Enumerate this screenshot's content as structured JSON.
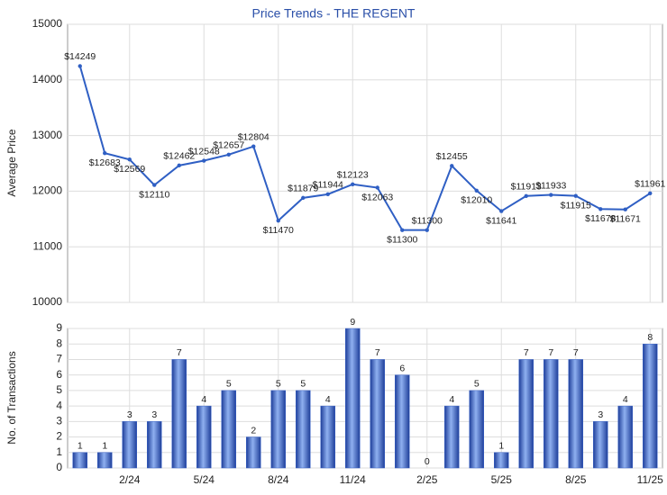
{
  "chart_data": [
    {
      "type": "line",
      "title": "Price Trends - THE REGENT",
      "ylabel": "Average Price",
      "color": "#2f5fc4",
      "values": [
        14249,
        12683,
        12569,
        12110,
        12462,
        12548,
        12657,
        12804,
        11470,
        11879,
        11944,
        12123,
        12063,
        11300,
        11300,
        12455,
        12010,
        11641,
        11913,
        11933,
        11915,
        11678,
        11671,
        11961
      ],
      "value_labels": [
        "$14249",
        "$12683",
        "$12569",
        "$12110",
        "$12462",
        "$12548",
        "$12657",
        "$12804",
        "$11470",
        "$11879",
        "$11944",
        "$12123",
        "$12063",
        "$11300",
        "$11300",
        "$12455",
        "$12010",
        "$11641",
        "$11913",
        "$11933",
        "$11915",
        "$11678",
        "$11671",
        "$11961"
      ],
      "ylim": [
        10000,
        15000
      ],
      "yticks": [
        10000,
        11000,
        12000,
        13000,
        14000,
        15000
      ],
      "grid": true
    },
    {
      "type": "bar",
      "ylabel": "No. of Transactions",
      "color": "#3a63c8",
      "categories": [
        null,
        null,
        "2/24",
        null,
        null,
        "5/24",
        null,
        null,
        "8/24",
        null,
        null,
        "11/24",
        null,
        null,
        "2/25",
        null,
        null,
        "5/25",
        null,
        null,
        "8/25",
        null,
        null,
        "11/25"
      ],
      "values": [
        1,
        1,
        3,
        3,
        7,
        4,
        5,
        2,
        5,
        5,
        4,
        9,
        7,
        6,
        0,
        4,
        5,
        1,
        7,
        7,
        7,
        3,
        4,
        8
      ],
      "ylim": [
        0,
        9
      ],
      "yticks": [
        0,
        1,
        2,
        3,
        4,
        5,
        6,
        7,
        8,
        9
      ],
      "grid": true
    }
  ]
}
